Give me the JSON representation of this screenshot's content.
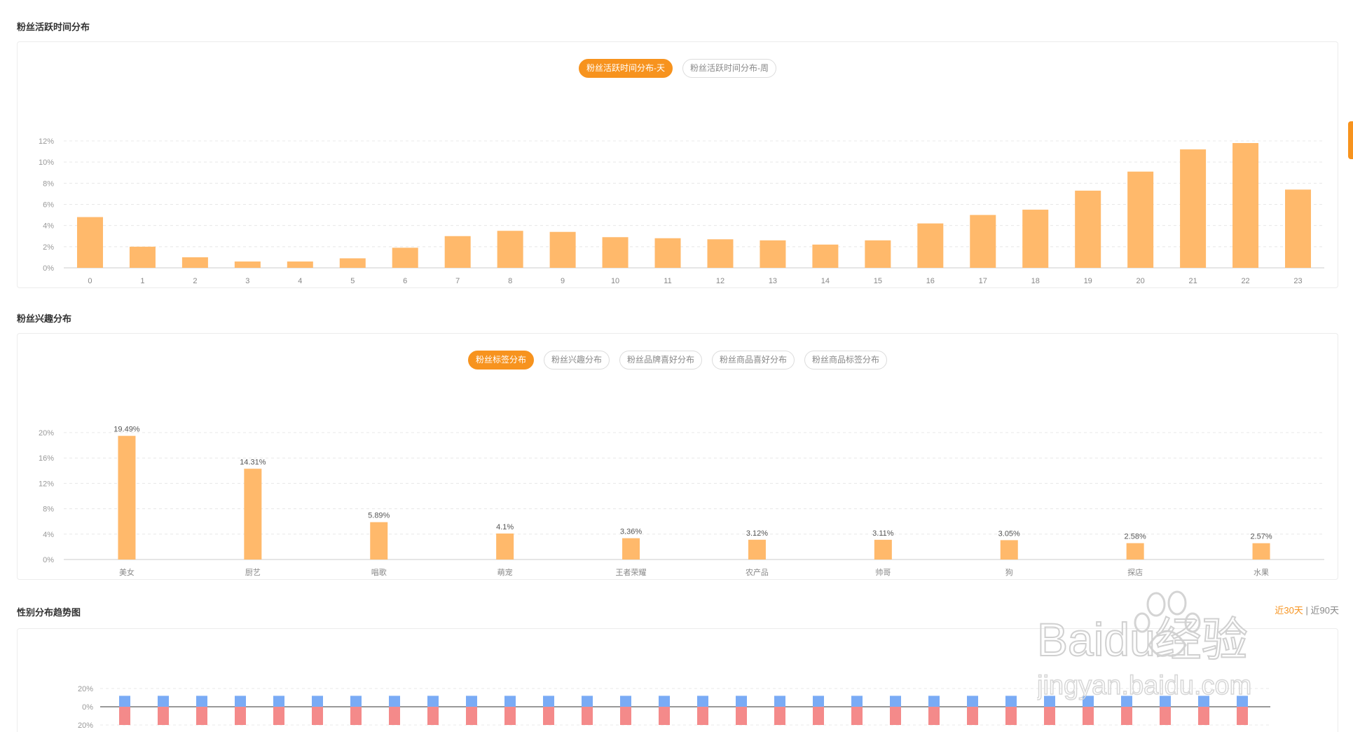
{
  "sections": {
    "active_time": {
      "title": "粉丝活跃时间分布"
    },
    "interest": {
      "title": "粉丝兴趣分布"
    },
    "gender": {
      "title": "性别分布趋势图"
    }
  },
  "active_tabs": [
    {
      "label": "粉丝活跃时间分布-天",
      "active": true
    },
    {
      "label": "粉丝活跃时间分布-周",
      "active": false
    }
  ],
  "interest_tabs": [
    {
      "label": "粉丝标签分布",
      "active": true
    },
    {
      "label": "粉丝兴趣分布",
      "active": false
    },
    {
      "label": "粉丝品牌喜好分布",
      "active": false
    },
    {
      "label": "粉丝商品喜好分布",
      "active": false
    },
    {
      "label": "粉丝商品标签分布",
      "active": false
    }
  ],
  "range": {
    "option1": "近30天",
    "separator": "|",
    "option2": "近90天"
  },
  "watermark": {
    "brand": "Baidu经验",
    "url": "jingyan.baidu.com"
  },
  "colors": {
    "accent": "#f7931e",
    "bar": "#ffb96b",
    "male": "#7aabf5",
    "female": "#f48a8a"
  },
  "chart_data": [
    {
      "type": "bar",
      "categories": [
        "0",
        "1",
        "2",
        "3",
        "4",
        "5",
        "6",
        "7",
        "8",
        "9",
        "10",
        "11",
        "12",
        "13",
        "14",
        "15",
        "16",
        "17",
        "18",
        "19",
        "20",
        "21",
        "22",
        "23"
      ],
      "values": [
        4.8,
        2.0,
        1.0,
        0.6,
        0.6,
        0.9,
        1.9,
        3.0,
        3.5,
        3.4,
        2.9,
        2.8,
        2.7,
        2.6,
        2.2,
        2.6,
        4.2,
        5.0,
        5.5,
        7.3,
        9.1,
        11.2,
        11.8,
        7.4
      ],
      "ylim": [
        0,
        12
      ],
      "yticks": [
        "0%",
        "2%",
        "4%",
        "6%",
        "8%",
        "10%",
        "12%"
      ],
      "grid": true
    },
    {
      "type": "bar",
      "categories": [
        "美女",
        "厨艺",
        "唱歌",
        "萌宠",
        "王者荣耀",
        "农产品",
        "帅哥",
        "狗",
        "探店",
        "水果"
      ],
      "values": [
        19.49,
        14.31,
        5.89,
        4.1,
        3.36,
        3.12,
        3.11,
        3.05,
        2.58,
        2.57
      ],
      "data_labels": [
        "19.49%",
        "14.31%",
        "5.89%",
        "4.1%",
        "3.36%",
        "3.12%",
        "3.11%",
        "3.05%",
        "2.58%",
        "2.57%"
      ],
      "ylim": [
        0,
        20
      ],
      "yticks": [
        "0%",
        "4%",
        "8%",
        "12%",
        "16%",
        "20%"
      ],
      "grid": true
    },
    {
      "type": "bar",
      "stacked": "diverging",
      "bar_count": 30,
      "series": [
        {
          "values": [
            12,
            12,
            12,
            12,
            12,
            12,
            12,
            12,
            12,
            12,
            12,
            12,
            12,
            12,
            12,
            12,
            12,
            12,
            12,
            12,
            12,
            12,
            12,
            12,
            12,
            12,
            12,
            12,
            12,
            12
          ]
        },
        {
          "values": [
            -20,
            -20,
            -20,
            -20,
            -20,
            -20,
            -20,
            -20,
            -20,
            -20,
            -20,
            -20,
            -20,
            -20,
            -20,
            -20,
            -20,
            -20,
            -20,
            -20,
            -20,
            -20,
            -20,
            -20,
            -20,
            -20,
            -20,
            -20,
            -20,
            -20
          ]
        }
      ],
      "yticks": [
        "20%",
        "0%",
        "20%"
      ],
      "grid": true
    }
  ]
}
